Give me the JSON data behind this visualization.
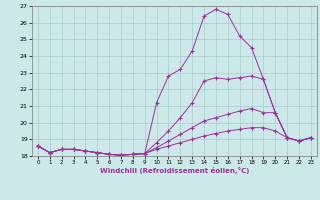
{
  "xlabel": "Windchill (Refroidissement éolien,°C)",
  "ylabel": "",
  "bg_color": "#cce8e8",
  "grid_color": "#aacccc",
  "line_color": "#993399",
  "xlim": [
    -0.5,
    23.5
  ],
  "ylim": [
    18,
    27
  ],
  "yticks": [
    18,
    19,
    20,
    21,
    22,
    23,
    24,
    25,
    26,
    27
  ],
  "xticks": [
    0,
    1,
    2,
    3,
    4,
    5,
    6,
    7,
    8,
    9,
    10,
    11,
    12,
    13,
    14,
    15,
    16,
    17,
    18,
    19,
    20,
    21,
    22,
    23
  ],
  "series": [
    [
      18.6,
      18.2,
      18.4,
      18.4,
      18.3,
      18.2,
      18.1,
      18.05,
      18.1,
      18.15,
      21.2,
      22.8,
      23.2,
      24.3,
      26.4,
      26.8,
      26.5,
      25.2,
      24.5,
      22.6,
      20.6,
      19.1,
      18.9,
      19.1
    ],
    [
      18.6,
      18.2,
      18.4,
      18.4,
      18.3,
      18.2,
      18.1,
      18.05,
      18.1,
      18.15,
      18.8,
      19.5,
      20.3,
      21.2,
      22.5,
      22.7,
      22.6,
      22.7,
      22.8,
      22.6,
      20.6,
      19.1,
      18.9,
      19.1
    ],
    [
      18.6,
      18.2,
      18.4,
      18.4,
      18.3,
      18.2,
      18.1,
      18.05,
      18.1,
      18.15,
      18.5,
      18.9,
      19.3,
      19.7,
      20.1,
      20.3,
      20.5,
      20.7,
      20.85,
      20.6,
      20.6,
      19.1,
      18.9,
      19.1
    ],
    [
      18.6,
      18.2,
      18.4,
      18.4,
      18.3,
      18.2,
      18.1,
      18.05,
      18.1,
      18.15,
      18.4,
      18.6,
      18.8,
      19.0,
      19.2,
      19.35,
      19.5,
      19.6,
      19.7,
      19.7,
      19.5,
      19.1,
      18.9,
      19.1
    ]
  ]
}
